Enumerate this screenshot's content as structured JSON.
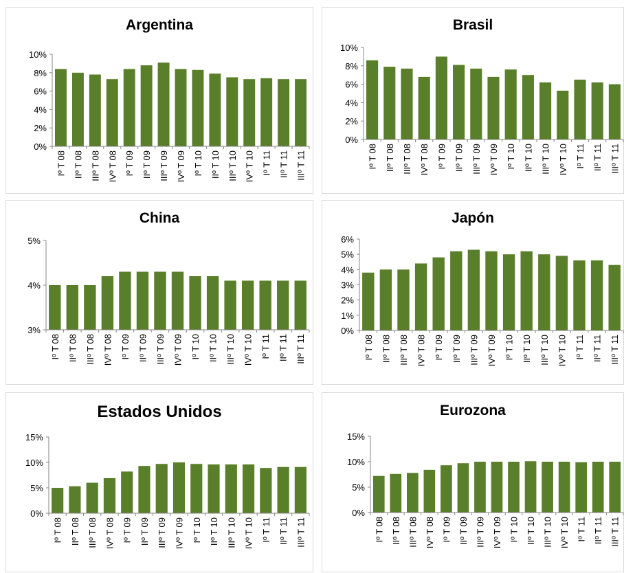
{
  "colors": {
    "bar": "#5a7f2a",
    "axis": "#868686",
    "panel_border": "#d9d9d9"
  },
  "chart_data": [
    {
      "type": "bar",
      "title": "Argentina",
      "categories": [
        "Iº T 08",
        "IIº T 08",
        "IIIº T 08",
        "IVº T 08",
        "Iº T 09",
        "IIº T 09",
        "IIIº T 09",
        "IVº T 09",
        "Iº T 10",
        "IIº T 10",
        "IIIº T 10",
        "IVº T 10",
        "Iº T 11",
        "IIº T 11",
        "IIIº T 11"
      ],
      "values": [
        8.4,
        8.0,
        7.8,
        7.3,
        8.4,
        8.8,
        9.1,
        8.4,
        8.3,
        7.9,
        7.5,
        7.3,
        7.4,
        7.3,
        7.3
      ],
      "ylim": [
        0,
        10
      ],
      "yticks": [
        0,
        2,
        4,
        6,
        8,
        10
      ],
      "ytick_labels": [
        "0%",
        "2%",
        "4%",
        "6%",
        "8%",
        "10%"
      ],
      "xlabel": "",
      "ylabel": "",
      "grid": false,
      "legend": "none"
    },
    {
      "type": "bar",
      "title": "Brasil",
      "categories": [
        "Iº T 08",
        "IIº T 08",
        "IIIº T 08",
        "IVº T 08",
        "Iº T 09",
        "IIº T 09",
        "IIIº T 09",
        "IVº T 09",
        "Iº T 10",
        "IIº T 10",
        "IIIº T 10",
        "IVº T 10",
        "Iº T 11",
        "IIº T 11",
        "IIIº T 11"
      ],
      "values": [
        8.6,
        7.9,
        7.7,
        6.8,
        9.0,
        8.1,
        7.7,
        6.8,
        7.6,
        7.0,
        6.2,
        5.3,
        6.5,
        6.2,
        6.0
      ],
      "ylim": [
        0,
        10
      ],
      "yticks": [
        0,
        2,
        4,
        6,
        8,
        10
      ],
      "ytick_labels": [
        "0%",
        "2%",
        "4%",
        "6%",
        "8%",
        "10%"
      ],
      "xlabel": "",
      "ylabel": "",
      "grid": false,
      "legend": "none"
    },
    {
      "type": "bar",
      "title": "China",
      "categories": [
        "Iº T 08",
        "IIº T 08",
        "IIIº T 08",
        "IVº T 08",
        "Iº T 09",
        "IIº T 09",
        "IIIº T 09",
        "IVº T 09",
        "Iº T 10",
        "IIº T 10",
        "IIIº T 10",
        "IVº T 10",
        "Iº T 11",
        "IIº T 11",
        "IIIº T 11"
      ],
      "values": [
        4.0,
        4.0,
        4.0,
        4.2,
        4.3,
        4.3,
        4.3,
        4.3,
        4.2,
        4.2,
        4.1,
        4.1,
        4.1,
        4.1,
        4.1
      ],
      "ylim": [
        3,
        5
      ],
      "yticks": [
        3,
        4,
        5
      ],
      "ytick_labels": [
        "3%",
        "4%",
        "5%"
      ],
      "xlabel": "",
      "ylabel": "",
      "grid": false,
      "legend": "none"
    },
    {
      "type": "bar",
      "title": "Japón",
      "categories": [
        "Iº T 08",
        "IIº T 08",
        "IIIº T 08",
        "IVº T 08",
        "Iº T 09",
        "IIº T 09",
        "IIIº T 09",
        "IVº T 09",
        "Iº T 10",
        "IIº T 10",
        "IIIº T 10",
        "IVº T 10",
        "Iº T 11",
        "IIº T 11",
        "IIIº T 11"
      ],
      "values": [
        3.8,
        4.0,
        4.0,
        4.4,
        4.8,
        5.2,
        5.3,
        5.2,
        5.0,
        5.2,
        5.0,
        4.9,
        4.6,
        4.6,
        4.3
      ],
      "ylim": [
        0,
        6
      ],
      "yticks": [
        0,
        1,
        2,
        3,
        4,
        5,
        6
      ],
      "ytick_labels": [
        "0%",
        "1%",
        "2%",
        "3%",
        "4%",
        "5%",
        "6%"
      ],
      "xlabel": "",
      "ylabel": "",
      "grid": false,
      "legend": "none"
    },
    {
      "type": "bar",
      "title": "Estados Unidos",
      "categories": [
        "Iº T 08",
        "IIº T 08",
        "IIIº T 08",
        "IVº T 08",
        "Iº T 09",
        "IIº T 09",
        "IIIº T 09",
        "IVº T 09",
        "Iº T 10",
        "IIº T 10",
        "IIIº T 10",
        "IVº T 10",
        "Iº T 11",
        "IIº T 11",
        "IIIº T 11"
      ],
      "values": [
        5.0,
        5.3,
        6.0,
        6.9,
        8.2,
        9.3,
        9.7,
        10.0,
        9.7,
        9.6,
        9.6,
        9.6,
        8.9,
        9.1,
        9.1
      ],
      "ylim": [
        0,
        15
      ],
      "yticks": [
        0,
        5,
        10,
        15
      ],
      "ytick_labels": [
        "0%",
        "5%",
        "10%",
        "15%"
      ],
      "xlabel": "",
      "ylabel": "",
      "grid": false,
      "legend": "none"
    },
    {
      "type": "bar",
      "title": "Eurozona",
      "categories": [
        "Iº T 08",
        "IIº T 08",
        "IIIº T 08",
        "IVº T 08",
        "Iº T 09",
        "IIº T 09",
        "IIIº T 09",
        "IVº T 09",
        "Iº T 10",
        "IIº T 10",
        "IIIº T 10",
        "IVº T 10",
        "Iº T 11",
        "IIº T 11",
        "IIIº T 11"
      ],
      "values": [
        7.2,
        7.6,
        7.8,
        8.4,
        9.3,
        9.7,
        10.0,
        10.0,
        10.0,
        10.1,
        10.0,
        10.0,
        9.9,
        10.0,
        10.0
      ],
      "ylim": [
        0,
        15
      ],
      "yticks": [
        0,
        5,
        10,
        15
      ],
      "ytick_labels": [
        "0%",
        "5%",
        "10%",
        "15%"
      ],
      "xlabel": "",
      "ylabel": "",
      "grid": false,
      "legend": "none"
    }
  ]
}
